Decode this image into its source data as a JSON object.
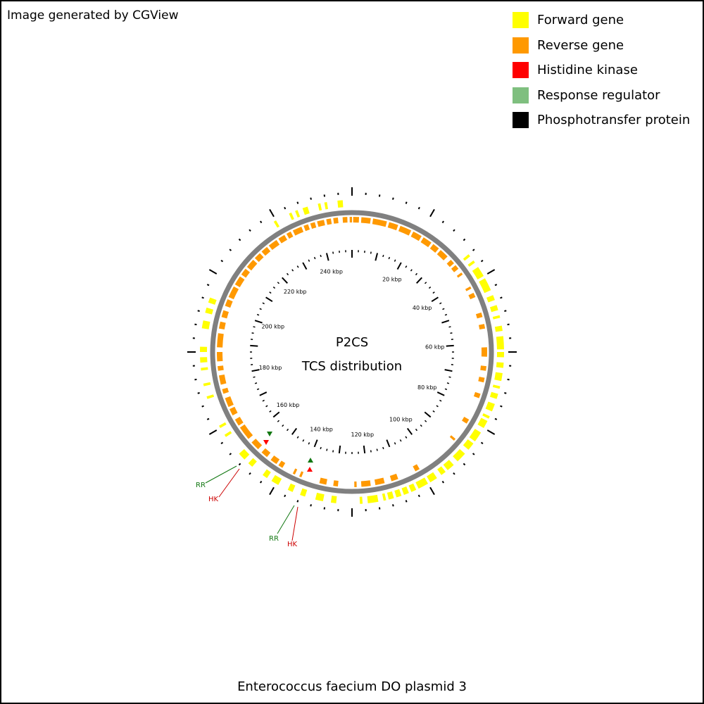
{
  "header": {
    "credit": "Image generated by CGView"
  },
  "legend": {
    "items": [
      {
        "label": "Forward gene",
        "color": "#ffff00"
      },
      {
        "label": "Reverse gene",
        "color": "#ff9900"
      },
      {
        "label": "Histidine kinase",
        "color": "#ff0000"
      },
      {
        "label": "Response regulator",
        "color": "#7fbf7f"
      },
      {
        "label": "Phosphotransfer protein",
        "color": "#000000"
      }
    ]
  },
  "map": {
    "center_title": "P2CS",
    "center_subtitle": "TCS distribution",
    "tick_labels": [
      "20 kbp",
      "40 kbp",
      "60 kbp",
      "80 kbp",
      "100 kbp",
      "120 kbp",
      "140 kbp",
      "160 kbp",
      "180 kbp",
      "200 kbp",
      "220 kbp",
      "240 kbp"
    ],
    "callouts": [
      {
        "label": "RR",
        "color": "#117711"
      },
      {
        "label": "HK",
        "color": "#cc0000"
      },
      {
        "label": "RR",
        "color": "#117711"
      },
      {
        "label": "HK",
        "color": "#cc0000"
      }
    ],
    "backbone_color": "#808080"
  },
  "footer": {
    "organism": "Enterococcus faecium DO plasmid 3"
  }
}
